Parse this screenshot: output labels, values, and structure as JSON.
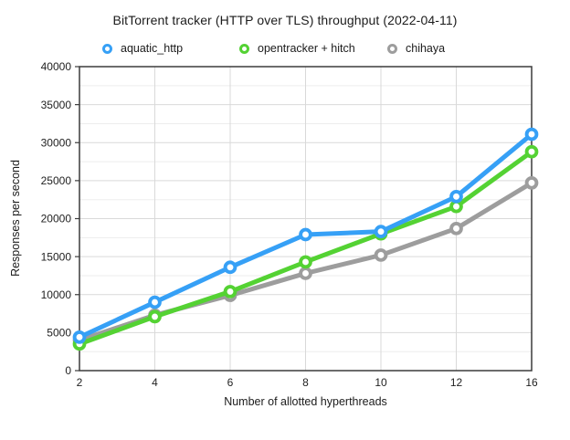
{
  "title": "BitTorrent tracker (HTTP over TLS) throughput (2022-04-11)",
  "chart_data": {
    "type": "line",
    "title": "BitTorrent tracker (HTTP over TLS) throughput (2022-04-11)",
    "xlabel": "Number of allotted hyperthreads",
    "ylabel": "Responses per second",
    "categories": [
      2,
      4,
      6,
      8,
      10,
      12,
      16
    ],
    "ylim": [
      0,
      40000
    ],
    "yticks": [
      0,
      5000,
      10000,
      15000,
      20000,
      25000,
      30000,
      35000,
      40000
    ],
    "ytick_minor_step": 2500,
    "grid": true,
    "legend_position": "top",
    "frame_color": "#3b3b3b",
    "grid_major_color": "#d9d9d9",
    "grid_minor_color": "#ededed",
    "marker_style": "open-circle",
    "series": [
      {
        "name": "aquatic_http",
        "color": "#36a0f6",
        "values": [
          4400,
          9000,
          13600,
          17900,
          18300,
          22900,
          31100
        ]
      },
      {
        "name": "opentracker + hitch",
        "color": "#54d233",
        "values": [
          3500,
          7100,
          10400,
          14300,
          18000,
          21600,
          28800
        ]
      },
      {
        "name": "chihaya",
        "color": "#9d9d9d",
        "values": [
          4000,
          7300,
          9900,
          12800,
          15200,
          18700,
          24700
        ]
      }
    ]
  }
}
